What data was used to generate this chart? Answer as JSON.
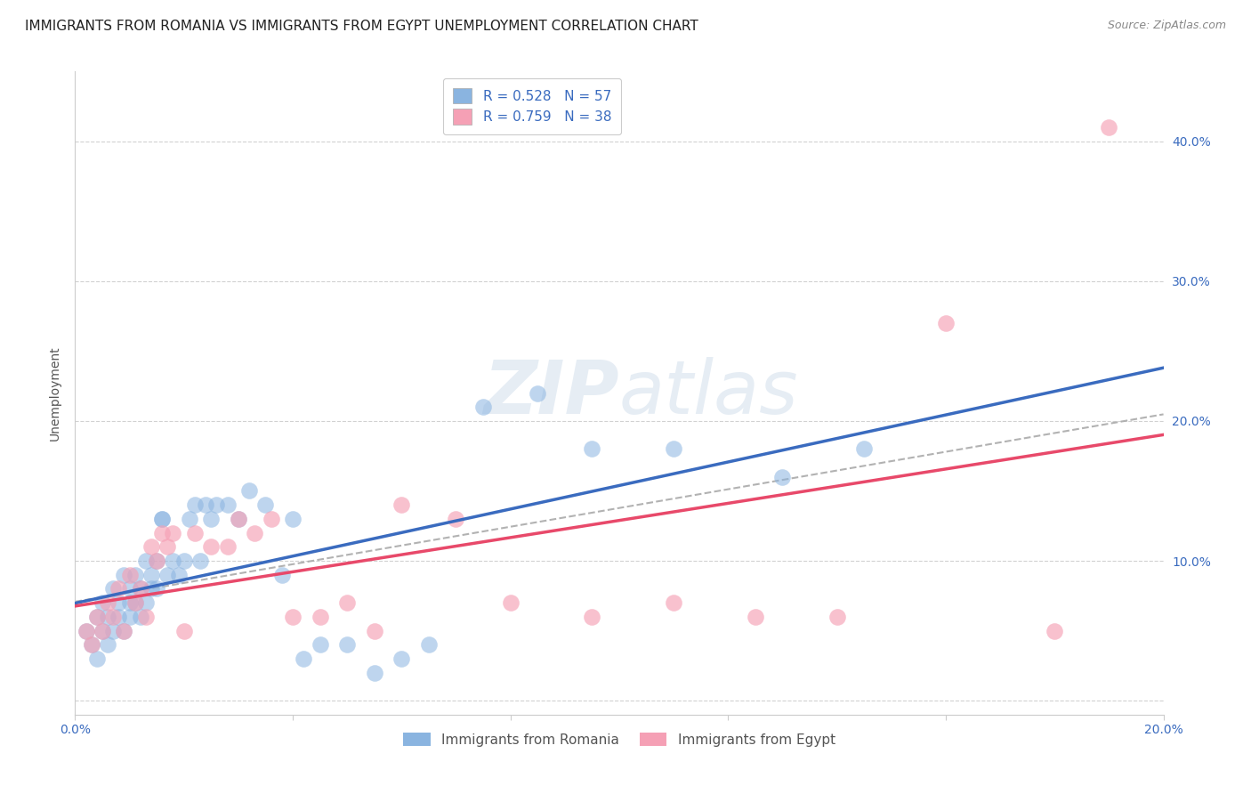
{
  "title": "IMMIGRANTS FROM ROMANIA VS IMMIGRANTS FROM EGYPT UNEMPLOYMENT CORRELATION CHART",
  "source": "Source: ZipAtlas.com",
  "xlabel": "",
  "ylabel": "Unemployment",
  "xlim": [
    0.0,
    0.2
  ],
  "ylim": [
    -0.01,
    0.45
  ],
  "ytick_labels": [
    "",
    "10.0%",
    "20.0%",
    "30.0%",
    "40.0%"
  ],
  "ytick_vals": [
    0.0,
    0.1,
    0.2,
    0.3,
    0.4
  ],
  "xtick_labels": [
    "0.0%",
    "",
    "",
    "",
    "",
    "20.0%"
  ],
  "xtick_vals": [
    0.0,
    0.04,
    0.08,
    0.12,
    0.16,
    0.2
  ],
  "romania_color": "#8ab4e0",
  "egypt_color": "#f5a0b5",
  "romania_line_color": "#3a6bbf",
  "egypt_line_color": "#e8496a",
  "trend_line_color": "#aaaaaa",
  "R_romania": 0.528,
  "N_romania": 57,
  "R_egypt": 0.759,
  "N_egypt": 38,
  "romania_scatter_x": [
    0.002,
    0.003,
    0.004,
    0.004,
    0.005,
    0.005,
    0.006,
    0.006,
    0.007,
    0.007,
    0.008,
    0.008,
    0.009,
    0.009,
    0.01,
    0.01,
    0.01,
    0.011,
    0.011,
    0.012,
    0.012,
    0.013,
    0.013,
    0.014,
    0.014,
    0.015,
    0.015,
    0.016,
    0.016,
    0.017,
    0.018,
    0.019,
    0.02,
    0.021,
    0.022,
    0.023,
    0.024,
    0.025,
    0.026,
    0.028,
    0.03,
    0.032,
    0.035,
    0.038,
    0.04,
    0.042,
    0.045,
    0.05,
    0.055,
    0.06,
    0.065,
    0.075,
    0.085,
    0.095,
    0.11,
    0.13,
    0.145
  ],
  "romania_scatter_y": [
    0.05,
    0.04,
    0.06,
    0.03,
    0.05,
    0.07,
    0.04,
    0.06,
    0.05,
    0.08,
    0.07,
    0.06,
    0.09,
    0.05,
    0.08,
    0.06,
    0.07,
    0.09,
    0.07,
    0.06,
    0.08,
    0.1,
    0.07,
    0.09,
    0.08,
    0.1,
    0.08,
    0.13,
    0.13,
    0.09,
    0.1,
    0.09,
    0.1,
    0.13,
    0.14,
    0.1,
    0.14,
    0.13,
    0.14,
    0.14,
    0.13,
    0.15,
    0.14,
    0.09,
    0.13,
    0.03,
    0.04,
    0.04,
    0.02,
    0.03,
    0.04,
    0.21,
    0.22,
    0.18,
    0.18,
    0.16,
    0.18
  ],
  "egypt_scatter_x": [
    0.002,
    0.003,
    0.004,
    0.005,
    0.006,
    0.007,
    0.008,
    0.009,
    0.01,
    0.011,
    0.012,
    0.013,
    0.014,
    0.015,
    0.016,
    0.017,
    0.018,
    0.02,
    0.022,
    0.025,
    0.028,
    0.03,
    0.033,
    0.036,
    0.04,
    0.045,
    0.05,
    0.055,
    0.06,
    0.07,
    0.08,
    0.095,
    0.11,
    0.125,
    0.14,
    0.16,
    0.18,
    0.19
  ],
  "egypt_scatter_y": [
    0.05,
    0.04,
    0.06,
    0.05,
    0.07,
    0.06,
    0.08,
    0.05,
    0.09,
    0.07,
    0.08,
    0.06,
    0.11,
    0.1,
    0.12,
    0.11,
    0.12,
    0.05,
    0.12,
    0.11,
    0.11,
    0.13,
    0.12,
    0.13,
    0.06,
    0.06,
    0.07,
    0.05,
    0.14,
    0.13,
    0.07,
    0.06,
    0.07,
    0.06,
    0.06,
    0.27,
    0.05,
    0.41
  ],
  "background_color": "#ffffff",
  "grid_color": "#cccccc",
  "title_fontsize": 11,
  "axis_label_fontsize": 10,
  "tick_fontsize": 10,
  "legend_fontsize": 11
}
